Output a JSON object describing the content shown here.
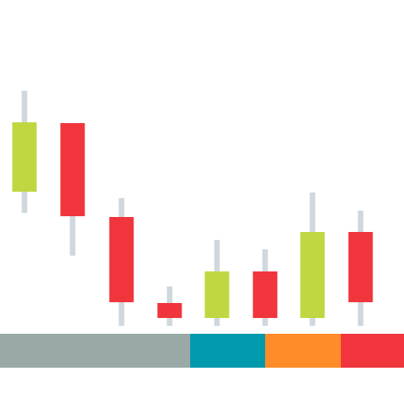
{
  "illustration": {
    "type": "candlestick-icon",
    "colors": {
      "bullish": "#c0d742",
      "bearish": "#f0353d",
      "wick": "#cfd8dc",
      "band_gray": "#9aa9a8",
      "band_teal": "#0099ad",
      "band_orange": "#ff8c29",
      "band_red": "#f0353d",
      "background": "#ffffff"
    },
    "candles": [
      {
        "trend": "up"
      },
      {
        "trend": "down"
      },
      {
        "trend": "down"
      },
      {
        "trend": "down"
      },
      {
        "trend": "up"
      },
      {
        "trend": "down"
      },
      {
        "trend": "up"
      },
      {
        "trend": "down"
      }
    ],
    "band_segments": [
      {
        "color_key": "band_gray"
      },
      {
        "color_key": "band_teal"
      },
      {
        "color_key": "band_orange"
      },
      {
        "color_key": "band_red"
      }
    ]
  }
}
